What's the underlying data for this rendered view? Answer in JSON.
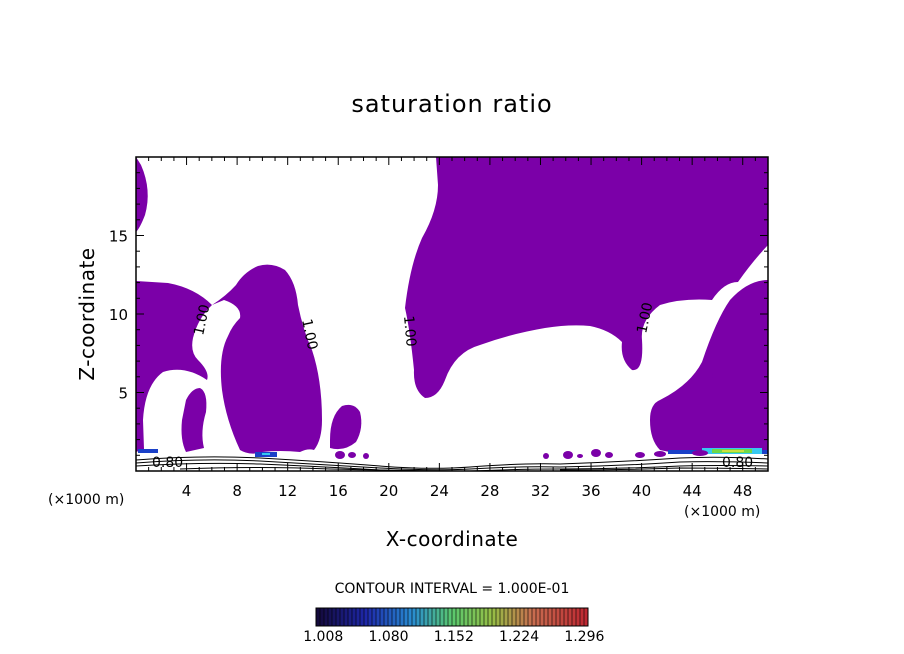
{
  "chart_data": {
    "type": "contour",
    "title": "saturation ratio",
    "xlabel": "X-coordinate",
    "ylabel": "Z-coordinate",
    "x_unit_label": "(×1000 m)",
    "x_ticks": [
      4,
      8,
      12,
      16,
      20,
      24,
      28,
      32,
      36,
      40,
      44,
      48
    ],
    "y_ticks": [
      5,
      10,
      15
    ],
    "xlim": [
      0,
      50
    ],
    "ylim": [
      0,
      20
    ],
    "contour_interval_text": "CONTOUR INTERVAL = 1.000E-01",
    "contour_labels": [
      "1.00",
      "1.00",
      "1.00",
      "1.00",
      "0.80",
      "0.80"
    ],
    "colorbar_ticks": [
      "1.008",
      "1.080",
      "1.152",
      "1.224",
      "1.296"
    ],
    "colorbar_range": [
      1.0,
      1.3
    ],
    "fill_color": "#7B00A8"
  }
}
